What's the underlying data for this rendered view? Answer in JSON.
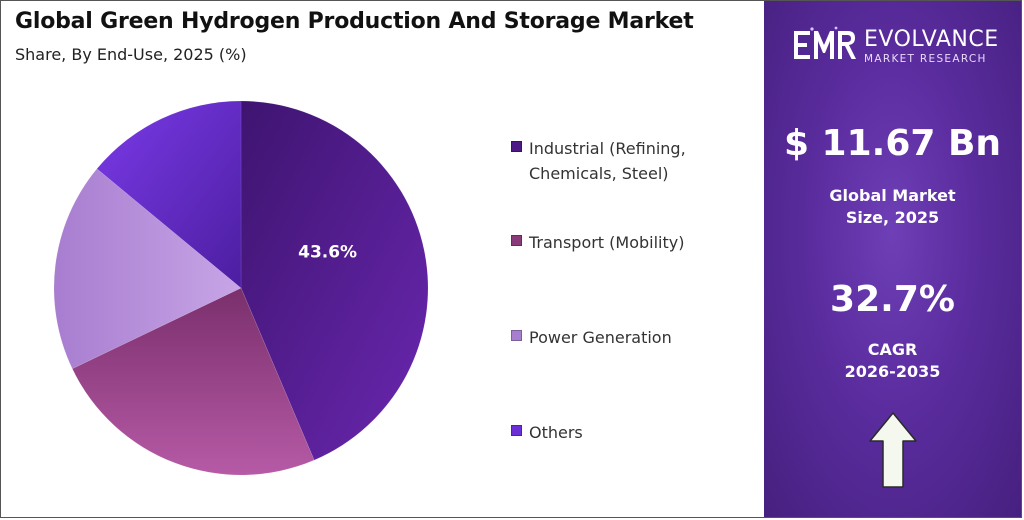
{
  "header": {
    "title": "Global Green Hydrogen Production And Storage Market",
    "subtitle": "Share, By End-Use, 2025 (%)"
  },
  "chart_data": {
    "type": "pie",
    "title": "Global Green Hydrogen Production And Storage Market",
    "subtitle": "Share, By End-Use, 2025 (%)",
    "categories": [
      "Industrial (Refining, Chemicals, Steel)",
      "Transport (Mobility)",
      "Power Generation",
      "Others"
    ],
    "values": [
      43.6,
      24.3,
      18.1,
      14.0
    ],
    "data_labels": [
      "43.6%",
      "",
      "",
      ""
    ],
    "colors": [
      "#5a1f9a",
      "#a24a94",
      "#b48ad8",
      "#6a2fd6"
    ],
    "legend_position": "right"
  },
  "legend": {
    "items": [
      {
        "label": "Industrial (Refining, Chemicals, Steel)",
        "color": "#4d1a85"
      },
      {
        "label": "Transport (Mobility)",
        "color": "#8a3a78"
      },
      {
        "label": "Power Generation",
        "color": "#a77fcf"
      },
      {
        "label": "Others",
        "color": "#6a2fd6"
      }
    ]
  },
  "brand": {
    "logo_text": "EMR",
    "name": "EVOLVANCE",
    "tagline": "MARKET RESEARCH"
  },
  "stats": {
    "market_size_value": "$ 11.67 Bn",
    "market_size_label_line1": "Global Market",
    "market_size_label_line2": "Size, 2025",
    "cagr_value": "32.7%",
    "cagr_label_line1": "CAGR",
    "cagr_label_line2": "2026-2035"
  },
  "icons": {
    "growth": "arrow-up-icon"
  }
}
